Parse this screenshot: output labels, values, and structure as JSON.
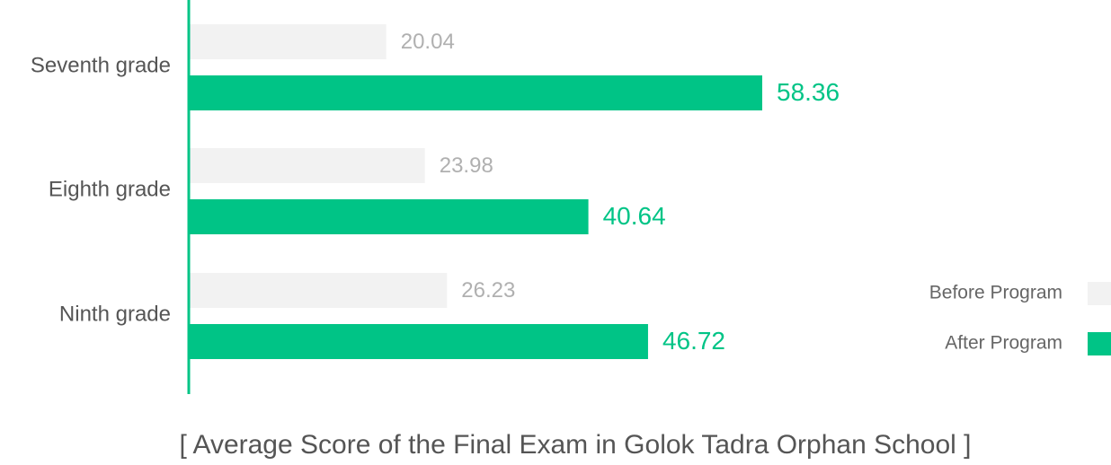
{
  "chart_data": {
    "type": "bar",
    "orientation": "horizontal",
    "title": "[ Average Score of the Final Exam in Golok Tadra Orphan School ]",
    "categories": [
      "Seventh grade",
      "Eighth grade",
      "Ninth grade"
    ],
    "series": [
      {
        "name": "Before Program",
        "color": "#f2f2f2",
        "label_color": "#b0b0b0",
        "values": [
          20.04,
          23.98,
          26.23
        ]
      },
      {
        "name": "After Program",
        "color": "#00c486",
        "label_color": "#00c486",
        "values": [
          58.36,
          40.64,
          46.72
        ]
      }
    ],
    "axis_color": "#00c486",
    "legend": "right"
  }
}
